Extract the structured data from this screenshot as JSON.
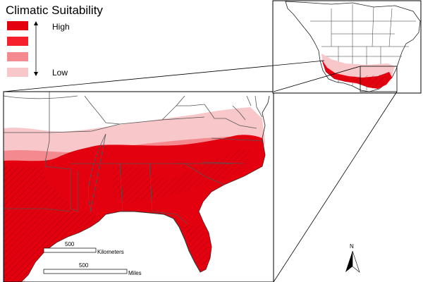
{
  "legend": {
    "title": "Climatic Suitability",
    "high_label": "High",
    "low_label": "Low",
    "classes": [
      {
        "level": 4,
        "color": "#e3000f"
      },
      {
        "level": 3,
        "color": "#f5202b"
      },
      {
        "level": 2,
        "color": "#f48a8f"
      },
      {
        "level": 1,
        "color": "#f8c7c9"
      }
    ]
  },
  "scalebar": {
    "km_value": "500",
    "km_unit": "Kilometers",
    "mi_value": "500",
    "mi_unit": "Miles"
  },
  "north_arrow": {
    "label": "N"
  },
  "colors": {
    "high": "#e3000f",
    "medium_high": "#f5202b",
    "medium_low": "#f48a8f",
    "low": "#f8c7c9",
    "boundary": "#555555"
  }
}
